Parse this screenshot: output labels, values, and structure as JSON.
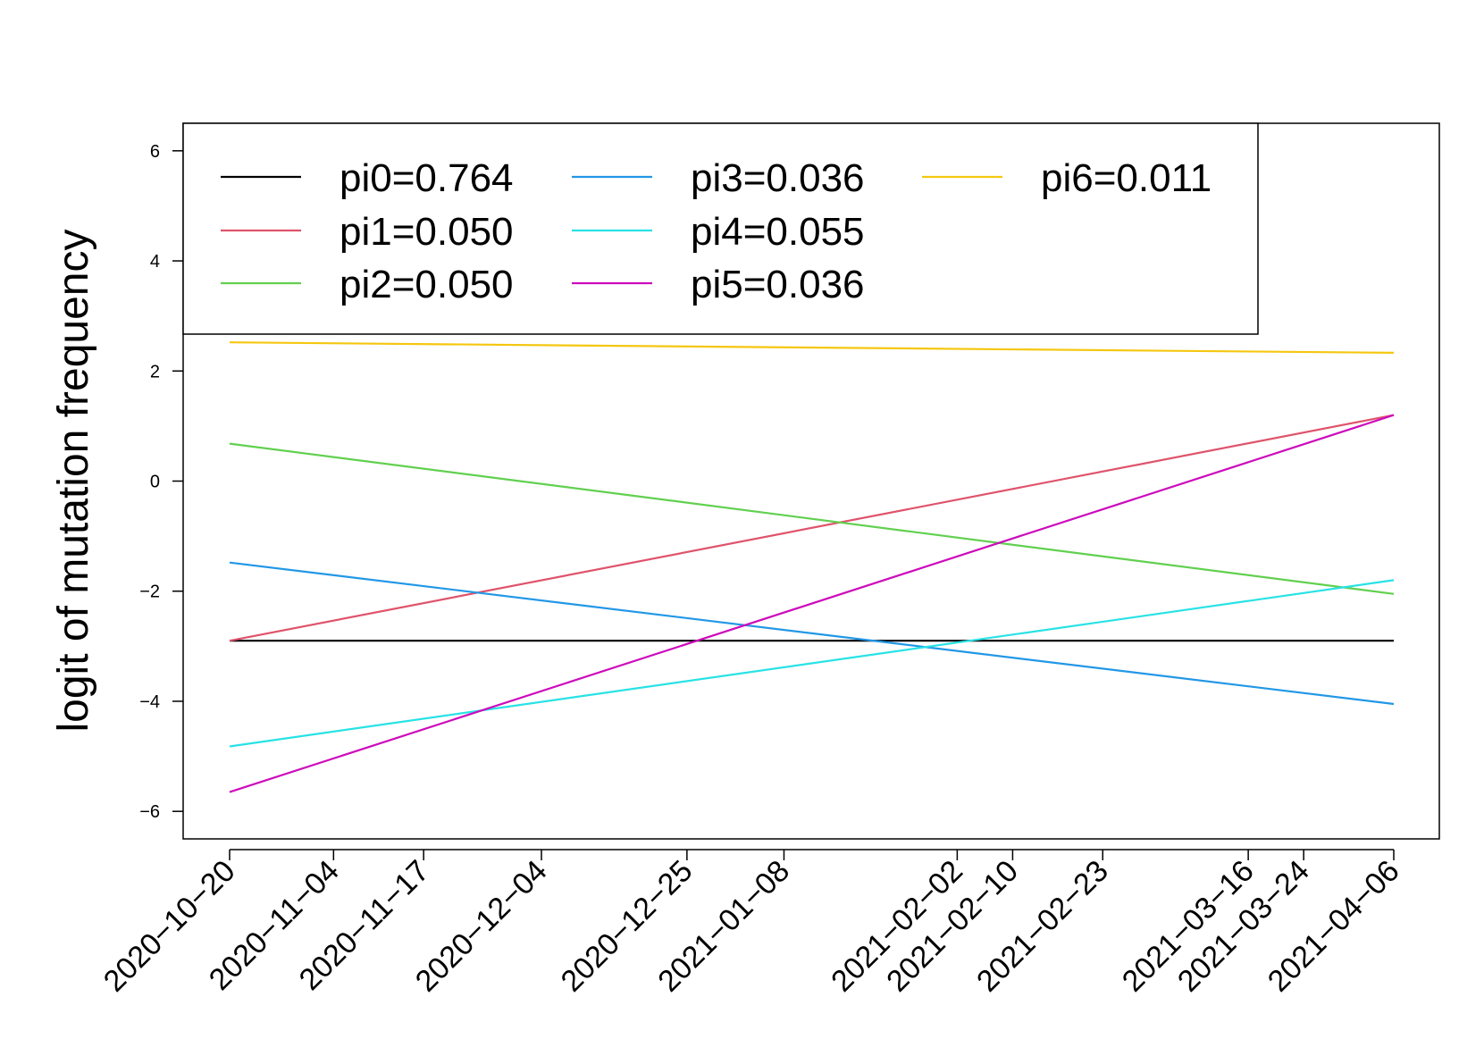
{
  "chart_data": {
    "type": "line",
    "title": "",
    "xlabel": "",
    "ylabel": "logit of mutation frequency",
    "x_ticks": [
      "2020-10-20",
      "2020-11-04",
      "2020-11-17",
      "2020-12-04",
      "2020-12-25",
      "2021-01-08",
      "2021-02-02",
      "2021-02-10",
      "2021-02-23",
      "2021-03-16",
      "2021-03-24",
      "2021-04-06"
    ],
    "x_tick_labels": [
      "2020−10−20",
      "2020−11−04",
      "2020−11−17",
      "2020−12−04",
      "2020−12−25",
      "2021−01−08",
      "2021−02−02",
      "2021−02−10",
      "2021−02−23",
      "2021−03−16",
      "2021−03−24",
      "2021−04−06"
    ],
    "xlim": [
      "2020-10-20",
      "2021-04-06"
    ],
    "y_ticks": [
      -6,
      -4,
      -2,
      0,
      2,
      4,
      6
    ],
    "y_tick_labels": [
      "−6",
      "−4",
      "−2",
      "0",
      "2",
      "4",
      "6"
    ],
    "ylim": [
      -6.5,
      6.5
    ],
    "grid": false,
    "legend": "top-left, three columns",
    "series": [
      {
        "name": "pi0=0.764",
        "color": "#000000",
        "x": [
          "2020-10-20",
          "2021-04-06"
        ],
        "values": [
          -2.9,
          -2.9
        ]
      },
      {
        "name": "pi1=0.050",
        "color": "#DF536B",
        "x": [
          "2020-10-20",
          "2021-04-06"
        ],
        "values": [
          -2.9,
          1.2
        ]
      },
      {
        "name": "pi2=0.050",
        "color": "#61D04F",
        "x": [
          "2020-10-20",
          "2021-04-06"
        ],
        "values": [
          0.68,
          -2.05
        ]
      },
      {
        "name": "pi3=0.036",
        "color": "#2297E6",
        "x": [
          "2020-10-20",
          "2021-04-06"
        ],
        "values": [
          -1.48,
          -4.05
        ]
      },
      {
        "name": "pi4=0.055",
        "color": "#28E2E5",
        "x": [
          "2020-10-20",
          "2021-04-06"
        ],
        "values": [
          -4.82,
          -1.8
        ]
      },
      {
        "name": "pi5=0.036",
        "color": "#CD0BBC",
        "x": [
          "2020-10-20",
          "2021-04-06"
        ],
        "values": [
          -5.65,
          1.2
        ]
      },
      {
        "name": "pi6=0.011",
        "color": "#F5C710",
        "x": [
          "2020-10-20",
          "2021-04-06"
        ],
        "values": [
          2.52,
          2.33
        ]
      }
    ]
  }
}
